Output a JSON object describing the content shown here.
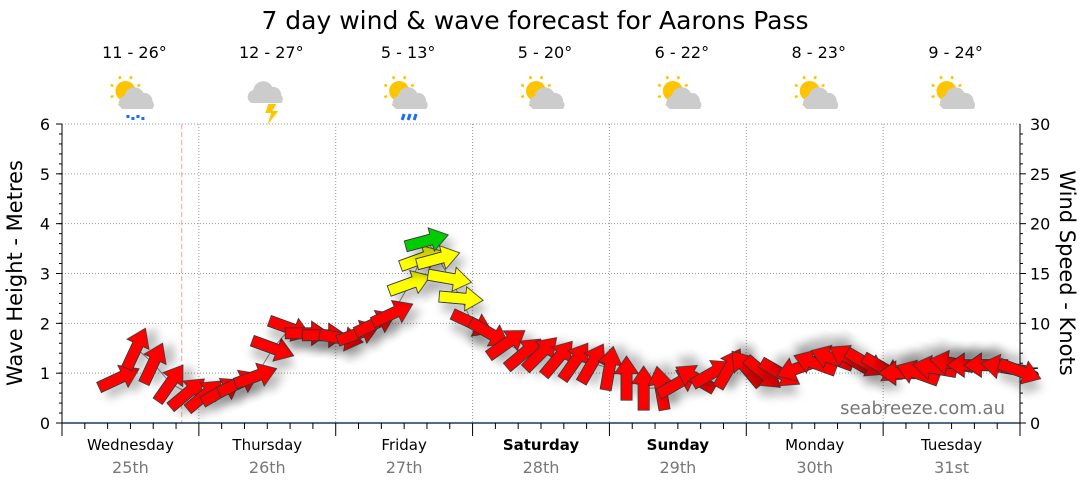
{
  "chart_data": {
    "type": "line",
    "title": "7 day wind & wave forecast for Aarons Pass",
    "ylabel_left": "Wave Height - Metres",
    "ylabel_right": "Wind Speed - Knots",
    "ylim_left": [
      0,
      6
    ],
    "ylim_right": [
      0,
      30
    ],
    "left_ticks": [
      "0",
      "1",
      "2",
      "3",
      "4",
      "5",
      "6"
    ],
    "right_ticks": [
      "0",
      "5",
      "10",
      "15",
      "20",
      "25",
      "30"
    ],
    "grid": true,
    "watermark": "seabreeze.com.au",
    "days": [
      {
        "day": "Wednesday",
        "date": "25th",
        "bold": false,
        "temp": "11 - 26°",
        "icon": "sun-cloud-drizzle"
      },
      {
        "day": "Thursday",
        "date": "26th",
        "bold": false,
        "temp": "12 - 27°",
        "icon": "cloud-lightning"
      },
      {
        "day": "Friday",
        "date": "27th",
        "bold": false,
        "temp": "5 - 13°",
        "icon": "sun-cloud-rain"
      },
      {
        "day": "Saturday",
        "date": "28th",
        "bold": true,
        "temp": "5 - 20°",
        "icon": "sun-cloud"
      },
      {
        "day": "Sunday",
        "date": "29th",
        "bold": true,
        "temp": "6 - 22°",
        "icon": "sun-cloud"
      },
      {
        "day": "Monday",
        "date": "30th",
        "bold": false,
        "temp": "8 - 23°",
        "icon": "sun-cloud"
      },
      {
        "day": "Tuesday",
        "date": "31st",
        "bold": false,
        "temp": "9 - 24°",
        "icon": "sun-cloud"
      }
    ],
    "now_hour": 21,
    "wind_series": {
      "name": "Wind speed (knots) and arrow direction (deg, 0 = pointing right)",
      "hours": [
        10,
        13,
        16,
        19,
        22,
        25,
        28,
        31,
        34,
        37,
        40,
        43,
        46,
        49,
        52,
        55,
        58,
        61,
        63,
        64,
        66,
        68,
        70,
        72,
        75,
        78,
        81,
        84,
        87,
        90,
        93,
        96,
        99,
        102,
        105,
        108,
        111,
        114,
        117,
        120,
        123,
        126,
        129,
        132,
        135,
        138,
        141,
        144,
        147,
        150,
        153,
        156,
        159,
        162,
        165,
        168
      ],
      "knots": [
        4.5,
        7.5,
        6,
        4,
        3,
        2.8,
        3.2,
        4,
        4.7,
        7.5,
        9.5,
        9,
        8.8,
        8.5,
        9,
        10,
        11,
        14,
        16.5,
        18.3,
        16.5,
        14.5,
        12.5,
        10,
        9,
        8,
        7,
        7,
        6.5,
        6.2,
        6,
        5.5,
        4.5,
        3.5,
        3.5,
        4,
        4.5,
        5,
        5.5,
        5.5,
        5,
        5,
        5.5,
        6,
        6.5,
        6.5,
        6,
        5.5,
        5,
        5,
        5.5,
        6,
        5.8,
        5.8,
        5.6,
        5.2
      ],
      "direction": [
        -25,
        -65,
        -65,
        -55,
        -40,
        -40,
        -30,
        -25,
        -20,
        20,
        20,
        0,
        0,
        10,
        -20,
        -25,
        -25,
        -20,
        -20,
        -15,
        -15,
        10,
        5,
        25,
        30,
        -35,
        -40,
        -45,
        -50,
        -55,
        -60,
        -80,
        -90,
        -90,
        -100,
        -30,
        -150,
        -30,
        -60,
        -130,
        40,
        30,
        160,
        200,
        200,
        210,
        30,
        30,
        180,
        200,
        190,
        190,
        180,
        180,
        190,
        20
      ]
    },
    "colors": {
      "low": "#ff0000",
      "mid": "#ffff00",
      "high": "#00cc00",
      "grid": "#999999",
      "now_line": "#ff9999",
      "date": "#777777"
    }
  }
}
